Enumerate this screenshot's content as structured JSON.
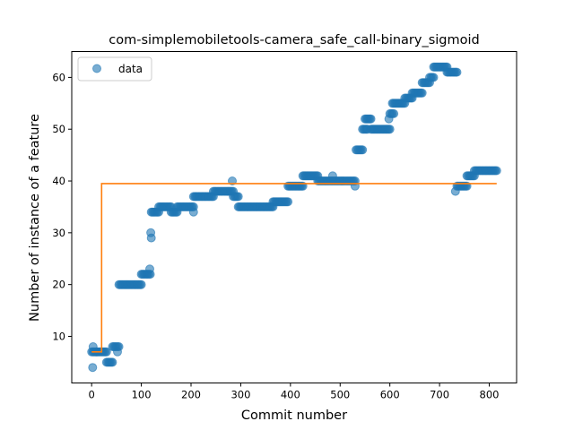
{
  "chart_data": {
    "type": "scatter",
    "title": "com-simplemobiletools-camera_safe_call-binary_sigmoid",
    "xlabel": "Commit number",
    "ylabel": "Number of instance of a feature",
    "xlim": [
      -40,
      855
    ],
    "ylim": [
      1,
      65
    ],
    "xticks": [
      0,
      100,
      200,
      300,
      400,
      500,
      600,
      700,
      800
    ],
    "yticks": [
      10,
      20,
      30,
      40,
      50,
      60
    ],
    "grid": false,
    "legend": {
      "position": "top-left",
      "entries": [
        "data"
      ]
    },
    "colors": {
      "data": "#1f77b4",
      "fit": "#ff7f0e"
    },
    "series": [
      {
        "name": "data",
        "kind": "scatter",
        "segments": [
          {
            "x_start": 0,
            "x_end": 10,
            "y": 7
          },
          {
            "x_start": 10,
            "x_end": 30,
            "y": 7
          },
          {
            "x_start": 30,
            "x_end": 42,
            "y": 5
          },
          {
            "x_start": 42,
            "x_end": 55,
            "y": 8
          },
          {
            "x_start": 55,
            "x_end": 100,
            "y": 20
          },
          {
            "x_start": 100,
            "x_end": 118,
            "y": 22
          },
          {
            "x_start": 120,
            "x_end": 135,
            "y": 34
          },
          {
            "x_start": 135,
            "x_end": 160,
            "y": 35
          },
          {
            "x_start": 160,
            "x_end": 172,
            "y": 34
          },
          {
            "x_start": 172,
            "x_end": 205,
            "y": 35
          },
          {
            "x_start": 205,
            "x_end": 245,
            "y": 37
          },
          {
            "x_start": 245,
            "x_end": 285,
            "y": 38
          },
          {
            "x_start": 285,
            "x_end": 295,
            "y": 37
          },
          {
            "x_start": 295,
            "x_end": 365,
            "y": 35
          },
          {
            "x_start": 365,
            "x_end": 395,
            "y": 36
          },
          {
            "x_start": 395,
            "x_end": 425,
            "y": 39
          },
          {
            "x_start": 425,
            "x_end": 455,
            "y": 41
          },
          {
            "x_start": 455,
            "x_end": 530,
            "y": 40
          },
          {
            "x_start": 532,
            "x_end": 545,
            "y": 46
          },
          {
            "x_start": 545,
            "x_end": 555,
            "y": 50
          },
          {
            "x_start": 550,
            "x_end": 562,
            "y": 52
          },
          {
            "x_start": 562,
            "x_end": 600,
            "y": 50
          },
          {
            "x_start": 600,
            "x_end": 608,
            "y": 53
          },
          {
            "x_start": 605,
            "x_end": 630,
            "y": 55
          },
          {
            "x_start": 630,
            "x_end": 645,
            "y": 56
          },
          {
            "x_start": 645,
            "x_end": 665,
            "y": 57
          },
          {
            "x_start": 665,
            "x_end": 680,
            "y": 59
          },
          {
            "x_start": 680,
            "x_end": 688,
            "y": 60
          },
          {
            "x_start": 688,
            "x_end": 715,
            "y": 62
          },
          {
            "x_start": 715,
            "x_end": 735,
            "y": 61
          },
          {
            "x_start": 735,
            "x_end": 755,
            "y": 39
          },
          {
            "x_start": 755,
            "x_end": 770,
            "y": 41
          },
          {
            "x_start": 770,
            "x_end": 815,
            "y": 42
          }
        ],
        "outliers": [
          {
            "x": 2,
            "y": 4
          },
          {
            "x": 3,
            "y": 8
          },
          {
            "x": 52,
            "y": 7
          },
          {
            "x": 119,
            "y": 30
          },
          {
            "x": 120,
            "y": 29
          },
          {
            "x": 117,
            "y": 23
          },
          {
            "x": 205,
            "y": 34
          },
          {
            "x": 283,
            "y": 40
          },
          {
            "x": 485,
            "y": 41
          },
          {
            "x": 530,
            "y": 39
          },
          {
            "x": 598,
            "y": 52
          },
          {
            "x": 732,
            "y": 38
          }
        ]
      },
      {
        "name": "",
        "kind": "line",
        "x": [
          0,
          20,
          20,
          815
        ],
        "y": [
          7,
          7,
          39.5,
          39.5
        ]
      }
    ]
  }
}
